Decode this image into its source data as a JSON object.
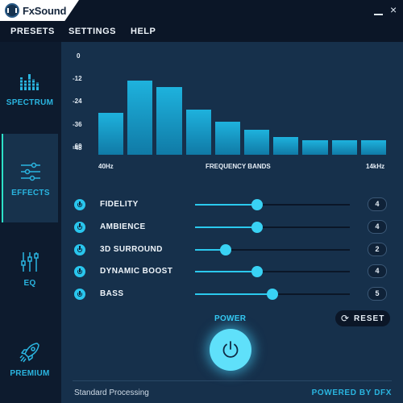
{
  "app": {
    "name": "FxSound"
  },
  "menu": {
    "items": [
      "PRESETS",
      "SETTINGS",
      "HELP"
    ]
  },
  "window_controls": {
    "close_glyph": "×"
  },
  "sidebar": {
    "items": [
      {
        "label": "SPECTRUM",
        "icon": "spectrum-icon",
        "active": false
      },
      {
        "label": "EFFECTS",
        "icon": "sliders-icon",
        "active": true
      },
      {
        "label": "EQ",
        "icon": "eq-icon",
        "active": false
      },
      {
        "label": "PREMIUM",
        "icon": "rocket-icon",
        "active": false
      }
    ]
  },
  "spectrum": {
    "y_ticks": [
      "0",
      "-12",
      "-24",
      "-36",
      "-48",
      "-60"
    ],
    "x_start": "40Hz",
    "x_title": "FREQUENCY BANDS",
    "x_end": "14kHz",
    "levels_db": [
      -37,
      -16,
      -20,
      -35,
      -43,
      -48,
      -53,
      -55,
      -55,
      -55
    ]
  },
  "effects": [
    {
      "label": "FIDELITY",
      "value": "4",
      "max": 10,
      "on": true
    },
    {
      "label": "AMBIENCE",
      "value": "4",
      "max": 10,
      "on": true
    },
    {
      "label": "3D SURROUND",
      "value": "2",
      "max": 10,
      "on": true
    },
    {
      "label": "DYNAMIC BOOST",
      "value": "4",
      "max": 10,
      "on": true
    },
    {
      "label": "BASS",
      "value": "5",
      "max": 10,
      "on": true
    }
  ],
  "reset": {
    "label": "RESET",
    "icon": "refresh-icon"
  },
  "power": {
    "label": "POWER",
    "icon": "power-icon"
  },
  "status": {
    "text": "Standard Processing",
    "powered_by": "POWERED BY DFX"
  },
  "colors": {
    "accent": "#2ab5e0",
    "glow": "#5fe0fa",
    "panel": "#16304b",
    "background": "#0d1b2e"
  }
}
